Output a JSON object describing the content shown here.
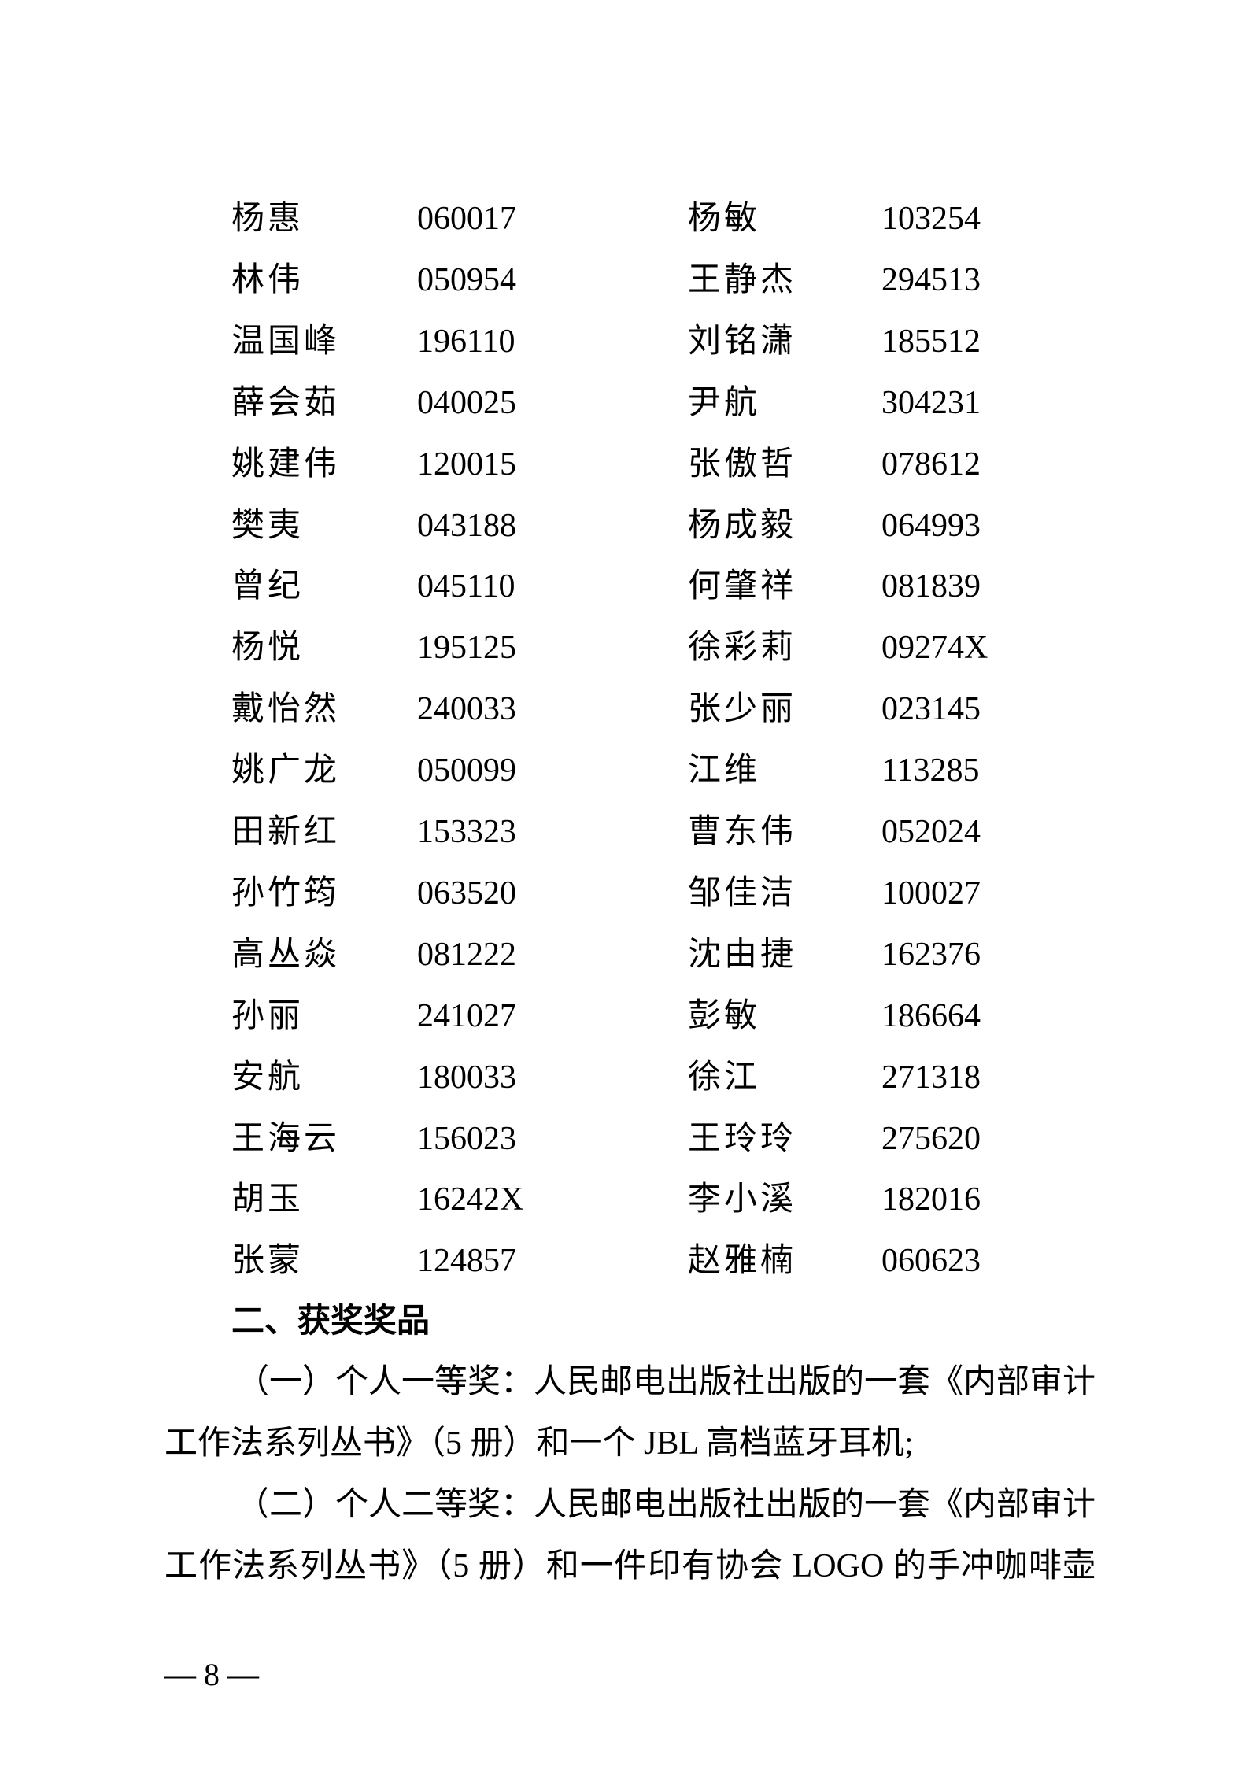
{
  "list": [
    [
      "杨惠",
      "060017",
      "杨敏",
      "103254"
    ],
    [
      "林伟",
      "050954",
      "王静杰",
      "294513"
    ],
    [
      "温国峰",
      "196110",
      "刘铭潇",
      "185512"
    ],
    [
      "薛会茹",
      "040025",
      "尹航",
      "304231"
    ],
    [
      "姚建伟",
      "120015",
      "张傲哲",
      "078612"
    ],
    [
      "樊夷",
      "043188",
      "杨成毅",
      "064993"
    ],
    [
      "曾纪",
      "045110",
      "何肇祥",
      "081839"
    ],
    [
      "杨悦",
      "195125",
      "徐彩莉",
      "09274X"
    ],
    [
      "戴怡然",
      "240033",
      "张少丽",
      "023145"
    ],
    [
      "姚广龙",
      "050099",
      "江维",
      "113285"
    ],
    [
      "田新红",
      "153323",
      "曹东伟",
      "052024"
    ],
    [
      "孙竹筠",
      "063520",
      "邹佳洁",
      "100027"
    ],
    [
      "高丛焱",
      "081222",
      "沈由捷",
      "162376"
    ],
    [
      "孙丽",
      "241027",
      "彭敏",
      "186664"
    ],
    [
      "安航",
      "180033",
      "徐江",
      "271318"
    ],
    [
      "王海云",
      "156023",
      "王玲玲",
      "275620"
    ],
    [
      "胡玉",
      "16242X",
      "李小溪",
      "182016"
    ],
    [
      "张蒙",
      "124857",
      "赵雅楠",
      "060623"
    ]
  ],
  "section_heading": "二、获奖奖品",
  "paragraphs": [
    [
      "（一）个人一等奖：人民邮电出版社出版的一套《内部审计",
      "工作法系列丛书》（5 册）和一个 JBL 高档蓝牙耳机;"
    ],
    [
      "（二）个人二等奖：人民邮电出版社出版的一套《内部审计",
      "工作法系列丛书》（5 册）和一件印有协会 LOGO 的手冲咖啡壶"
    ]
  ],
  "page_number": "— 8 —"
}
